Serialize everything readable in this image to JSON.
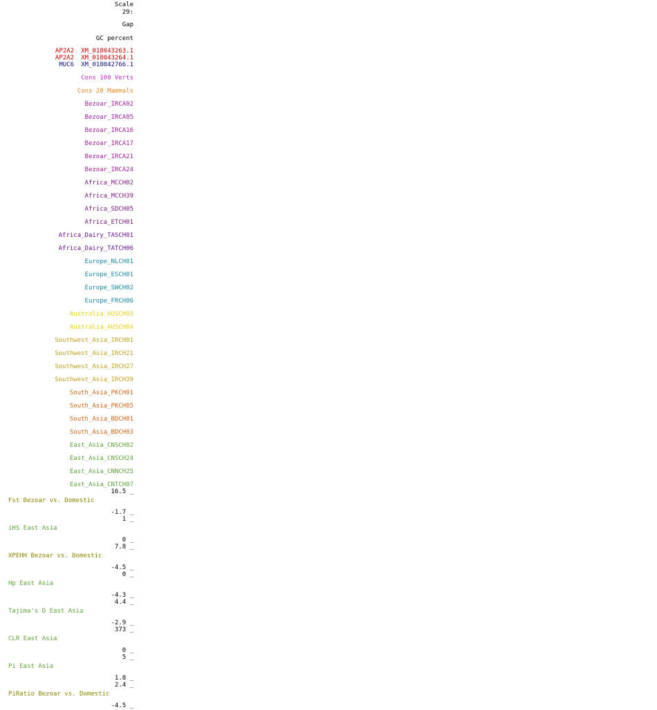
{
  "header": {
    "scale_label": "Scale",
    "scale_value": "29:",
    "gap": "Gap",
    "gc_percent": "GC percent"
  },
  "genes": [
    {
      "name": "AP2A2",
      "accession": "XM_018043263.1",
      "color": "#c00000"
    },
    {
      "name": "AP2A2",
      "accession": "XM_018043264.1",
      "color": "#c00000"
    },
    {
      "name": "MUC6",
      "accession": "XM_018042766.1",
      "color": "#0c0c78"
    }
  ],
  "conservation": [
    {
      "label": "Cons 100 Verts",
      "color": "#c030c0"
    },
    {
      "label": "Cons 20 Mammals",
      "color": "#e08a20"
    }
  ],
  "samples": [
    {
      "label": "Bezoar_IRCA02",
      "color": "#a0209a"
    },
    {
      "label": "Bezoar_IRCA05",
      "color": "#a0209a"
    },
    {
      "label": "Bezoar_IRCA16",
      "color": "#a0209a"
    },
    {
      "label": "Bezoar_IRCA17",
      "color": "#a0209a"
    },
    {
      "label": "Bezoar_IRCA21",
      "color": "#a0209a"
    },
    {
      "label": "Bezoar_IRCA24",
      "color": "#a0209a"
    },
    {
      "label": "Africa_MCCH02",
      "color": "#7c1c84"
    },
    {
      "label": "Africa_MCCH39",
      "color": "#7c1c84"
    },
    {
      "label": "Africa_SDCH05",
      "color": "#7c1c84"
    },
    {
      "label": "Africa_ETCH01",
      "color": "#7c1c84"
    },
    {
      "label": "Africa_Dairy_TASCH01",
      "color": "#6a1494"
    },
    {
      "label": "Africa_Dairy_TATCH06",
      "color": "#6a1494"
    },
    {
      "label": "Europe_NLCH01",
      "color": "#1a8aa0"
    },
    {
      "label": "Europe_ESCH01",
      "color": "#1a8aa0"
    },
    {
      "label": "Europe_SWCH02",
      "color": "#1a8aa0"
    },
    {
      "label": "Europe_FRCH06",
      "color": "#1a8aa0"
    },
    {
      "label": "Australia_AUSCH03",
      "color": "#e6d21a"
    },
    {
      "label": "Australia_AUSCH04",
      "color": "#e6d21a"
    },
    {
      "label": "Southwest_Asia_IRCH01",
      "color": "#c0a020"
    },
    {
      "label": "Southwest_Asia_IRCH21",
      "color": "#c0a020"
    },
    {
      "label": "Southwest_Asia_IRCH27",
      "color": "#c0a020"
    },
    {
      "label": "Southwest_Asia_IRCH39",
      "color": "#c0a020"
    },
    {
      "label": "South_Asia_PKCH01",
      "color": "#d06418"
    },
    {
      "label": "South_Asia_PKCH05",
      "color": "#d06418"
    },
    {
      "label": "South_Asia_BDCH01",
      "color": "#d06418"
    },
    {
      "label": "South_Asia_BDCH03",
      "color": "#d06418"
    },
    {
      "label": "East_Asia_CNSCH02",
      "color": "#5ca43a"
    },
    {
      "label": "East_Asia_CNSCH24",
      "color": "#5ca43a"
    },
    {
      "label": "East_Asia_CNNCH25",
      "color": "#5ca43a"
    },
    {
      "label": "East_Asia_CNTCH07",
      "color": "#5ca43a"
    }
  ],
  "tracks": [
    {
      "name": "Fst Bezoar vs. Domestic",
      "max": "16.5 _",
      "min": "-1.7 _",
      "color": "#8a8200"
    },
    {
      "name": "iHS East Asia",
      "max": "1 _",
      "min": "0 _",
      "color": "#5ca43a"
    },
    {
      "name": "XPEHH Bezoar vs. Domestic",
      "max": "7.8 _",
      "min": "-4.5 _",
      "color": "#8a8200"
    },
    {
      "name": "Hp East Asia",
      "max": "0 _",
      "min": "-4.3 _",
      "color": "#5ca43a"
    },
    {
      "name": "Tajima's D East Asia",
      "max": "4.4 _",
      "min": "-2.9 _",
      "color": "#5ca43a"
    },
    {
      "name": "CLR East Asia",
      "max": "373 _",
      "min": "0 _",
      "color": "#5ca43a"
    },
    {
      "name": "Pi East Asia",
      "max": "5 _",
      "min": "1.8 _",
      "color": "#5ca43a"
    },
    {
      "name": "PiRatio Bezoar vs. Domestic",
      "max": "2.4 _",
      "min": "-4.5 _",
      "color": "#8a8200"
    }
  ]
}
